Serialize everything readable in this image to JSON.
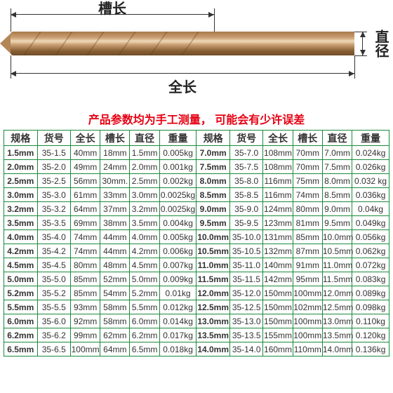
{
  "labels": {
    "groove_length": "槽长",
    "total_length": "全长",
    "diameter": "直径"
  },
  "note_text": "产品参数均为手工测量，  可能会有少许误差",
  "note_color": "#e60012",
  "border_color": "#1a8a3a",
  "headers": [
    "规格",
    "货号",
    "全长",
    "槽长",
    "直径",
    "重量",
    "规格",
    "货号",
    "全长",
    "槽长",
    "直径",
    "重量"
  ],
  "rows": [
    [
      "1.5mm",
      "35-1.5",
      "40mm",
      "18mm",
      "1.5mm",
      "0.005kg",
      "7.0mm",
      "35-7.0",
      "108mm",
      "70mm",
      "7.0mm",
      "0.024kg"
    ],
    [
      "2.0mm",
      "35-2.0",
      "49mm",
      "24mm",
      "2.0mm",
      "0.001kg",
      "7.5mm",
      "35-7.5",
      "108mm",
      "70mm",
      "7.5mm",
      "0.026kg"
    ],
    [
      "2.5mm",
      "35-2.5",
      "56mm",
      "30mm.",
      "2.5mm",
      "0.002kg",
      "8.0mm",
      "35-8.0",
      "116mm",
      "75mm",
      "8.0mm",
      "0.032 kg"
    ],
    [
      "3.0mm",
      "35-3.0",
      "61mm",
      "33mm",
      "3.0mm",
      "0.0025kg",
      "8.5mm",
      "35-8.5",
      "116mm",
      "74mm",
      "8.5mm",
      "0.036kg"
    ],
    [
      "3.2mm",
      "35-3.2",
      "64mm",
      "37mm",
      "3.2mm",
      "0.0025kg",
      "9.0mm",
      "35-9.0",
      "124mm",
      "80mm",
      "9.0mm",
      "0.04kg"
    ],
    [
      "3.5mm",
      "35-3.5",
      "69mm",
      "38mm",
      "3.5mm",
      "0.004kg",
      "9.5mm",
      "35-9.5",
      "123mm",
      "81mm",
      "9.5mm",
      "0.049kg"
    ],
    [
      "4.0mm",
      "35-4.0",
      "74mm",
      "44mm",
      "4.0mm",
      "0.005kg",
      "10.0mm",
      "35-10.0",
      "131mm",
      "85mm",
      "10.0mm",
      "0.056kg"
    ],
    [
      "4.2mm",
      "35-4.2",
      "74mm",
      "44mm",
      "4.2mm",
      "0.006kg",
      "10.5mm",
      "35-10.5",
      "132mm",
      "87mm",
      "10.5mm",
      "0.062kg"
    ],
    [
      "4.5mm",
      "35-4.5",
      "80mm",
      "48mm",
      "4.5mm",
      "0.007kg",
      "11.0mm",
      "35-11.0",
      "140mm",
      "91mm",
      "11.0mm",
      "0.072kg"
    ],
    [
      "5.0mm",
      "35-5.0",
      "85mm",
      "52mm",
      "5.0mm",
      "0.009kg",
      "11.5mm",
      "35-11.5",
      "142mm",
      "95mm",
      "11.5mm",
      "0.083kg"
    ],
    [
      "5.2mm",
      "35-5.2",
      "85mm",
      "54mm",
      "5.2mm",
      "0.01kg",
      "12.0mm",
      "35-12.0",
      "150mm",
      "100mm",
      "12.0mm",
      "0.089kg"
    ],
    [
      "5.5mm",
      "35-5.5",
      "93mm",
      "58mm",
      "5.5mm",
      "0.012kg",
      "12.5mm",
      "35-12.5",
      "150mm",
      "102mm",
      "12.5mm",
      "0.098kg"
    ],
    [
      "6.0mm",
      "35-6.0",
      "92mm",
      "58mm",
      "6.0mm",
      "0.014kg",
      "13.0mm",
      "35-13.0",
      "150mm",
      "100mm",
      "13.0mm",
      "0.110kg"
    ],
    [
      "6.2mm",
      "35-6.2",
      "99mm",
      "62mm",
      "6.2mm",
      "0.017kg",
      "13.5mm",
      "35-13.5",
      "155mm",
      "100mm",
      "13.5mm",
      "0.120kg"
    ],
    [
      "6.5mm",
      "35-6.5",
      "100mm",
      "64mm",
      "6.5mm",
      "0.018kg",
      "14.0mm",
      "35-14.0",
      "160mm",
      "110mm",
      "14.0mm",
      "0.136kg"
    ]
  ],
  "bold_columns": [
    0,
    6
  ]
}
